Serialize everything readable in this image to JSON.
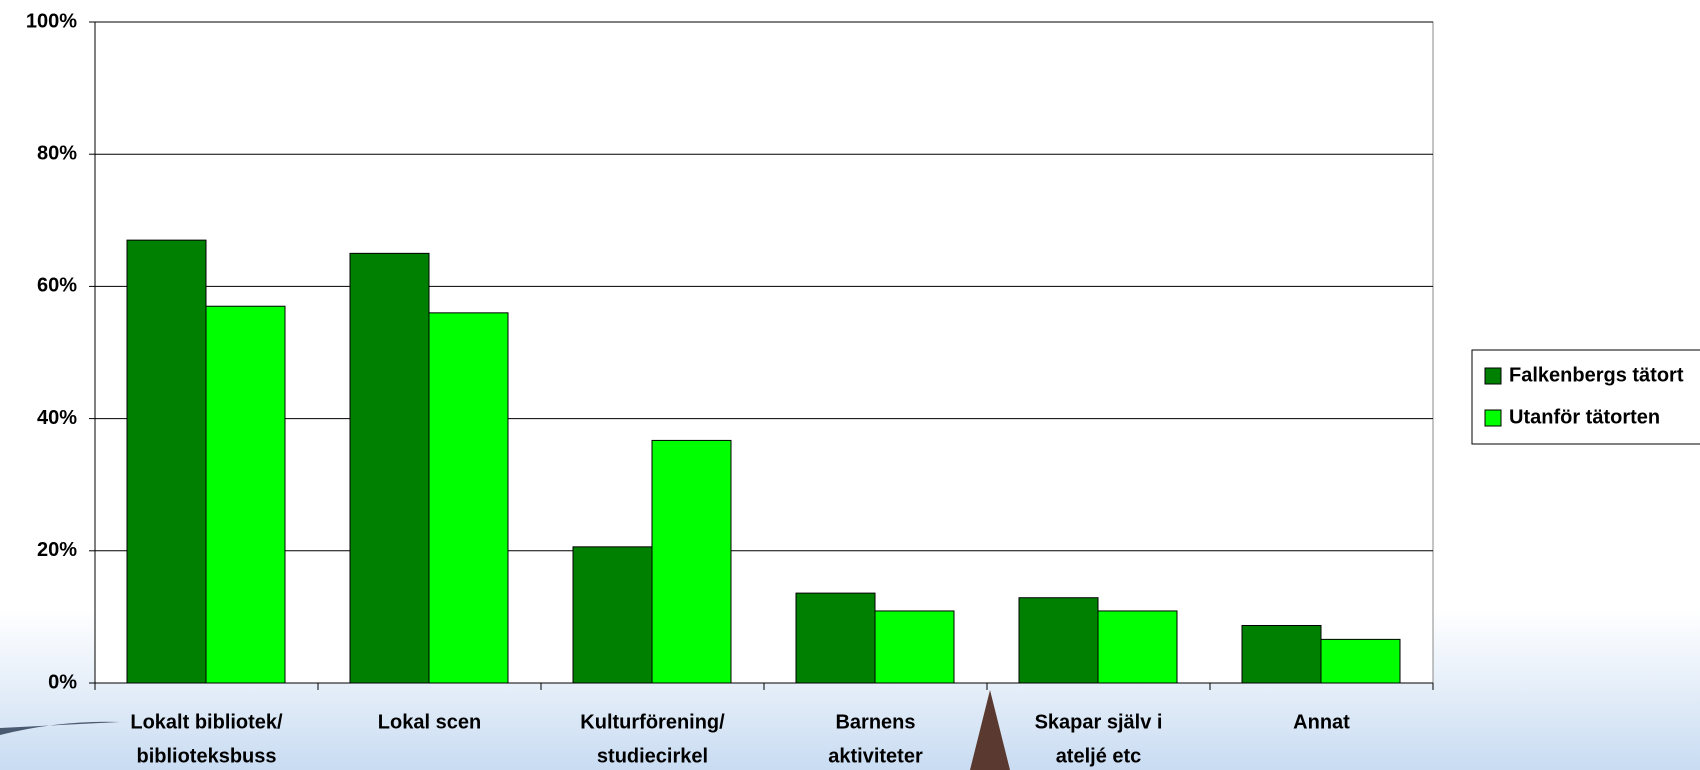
{
  "chart_data": {
    "type": "bar",
    "categories": [
      [
        "Lokalt bibliotek/",
        "biblioteksbuss"
      ],
      [
        "Lokal scen"
      ],
      [
        "Kulturförening/",
        "studiecirkel"
      ],
      [
        "Barnens",
        "aktiviteter"
      ],
      [
        "Skapar själv i",
        "ateljé etc"
      ],
      [
        "Annat"
      ]
    ],
    "series": [
      {
        "name": "Falkenbergs tätort",
        "color": "#008000",
        "values": [
          67,
          65,
          20.6,
          13.6,
          12.9,
          8.7
        ]
      },
      {
        "name": "Utanför tätorten",
        "color": "#00ff00",
        "values": [
          57,
          56,
          36.7,
          10.9,
          10.9,
          6.6
        ]
      }
    ],
    "ylim": [
      0,
      100
    ],
    "yticks": [
      {
        "value": 0,
        "label": "0%"
      },
      {
        "value": 20,
        "label": "20%"
      },
      {
        "value": 40,
        "label": "40%"
      },
      {
        "value": 60,
        "label": "60%"
      },
      {
        "value": 80,
        "label": "80%"
      },
      {
        "value": 100,
        "label": "100%"
      }
    ],
    "grid": true,
    "legend": "right"
  }
}
